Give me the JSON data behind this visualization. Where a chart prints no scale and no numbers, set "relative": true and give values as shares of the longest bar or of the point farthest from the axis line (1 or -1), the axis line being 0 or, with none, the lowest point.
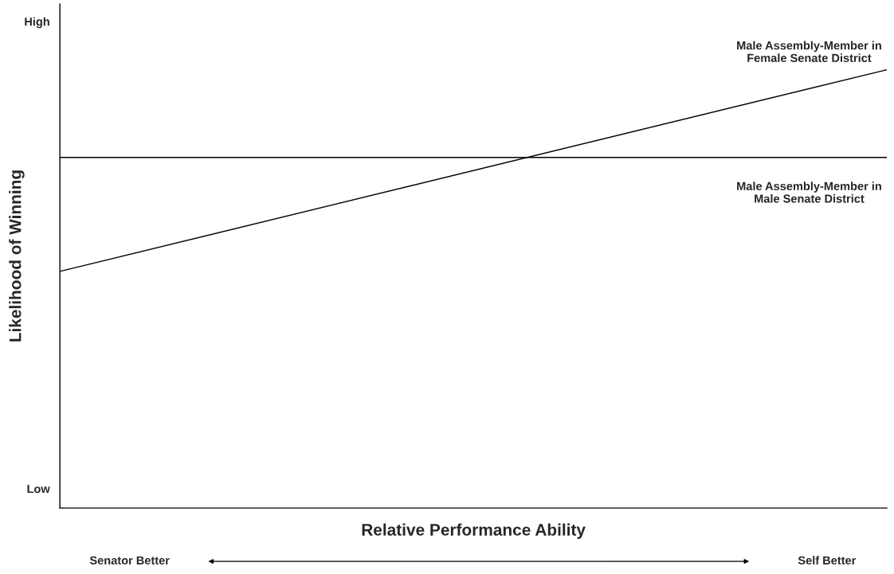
{
  "chart_data": {
    "type": "line",
    "xlabel": "Relative Performance Ability",
    "ylabel": "Likelihood of Winning",
    "categories": [
      null,
      null
    ],
    "relative": true,
    "series": [
      {
        "name": "Male Assembly-Member in Female Senate District",
        "color": "#000000",
        "values": [
          0.54,
          1
        ]
      },
      {
        "name": "Male Assembly-Member in Male Senate District",
        "color": "#000000",
        "values": [
          0.8,
          0.8
        ]
      }
    ],
    "annotations": [
      "High",
      "Low",
      "Senator Better",
      "Self Better"
    ]
  }
}
